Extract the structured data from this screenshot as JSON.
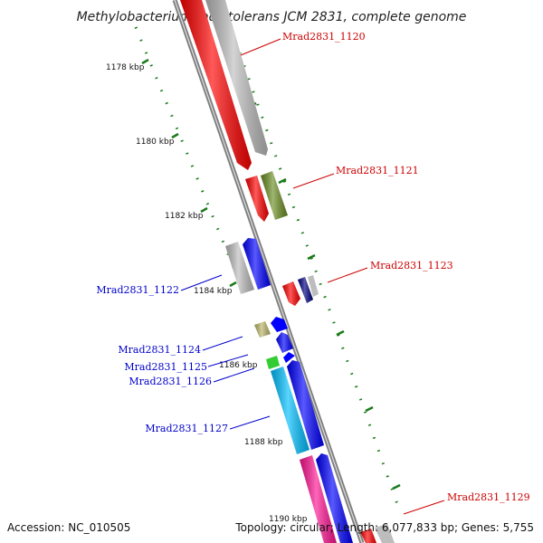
{
  "title": "Methylobacterium radiotolerans JCM 2831, complete genome",
  "footer": {
    "accession": "Accession: NC_010505",
    "topology": "Topology: circular; Length: 6,077,833 bp; Genes: 5,755"
  },
  "colors": {
    "backbone": "#808080",
    "tick": "#1a7a1a",
    "forward_label": "#cc0000",
    "reverse_label": "#0000cc"
  },
  "kbp_labels": [
    "1178 kbp",
    "1180 kbp",
    "1182 kbp",
    "1184 kbp",
    "1186 kbp",
    "1188 kbp",
    "1190 kbp"
  ],
  "gene_labels": [
    {
      "text": "Mrad2831_1120",
      "strand": "forward"
    },
    {
      "text": "Mrad2831_1121",
      "strand": "forward"
    },
    {
      "text": "Mrad2831_1123",
      "strand": "forward"
    },
    {
      "text": "Mrad2831_1129",
      "strand": "forward"
    },
    {
      "text": "Mrad2831_1122",
      "strand": "reverse"
    },
    {
      "text": "Mrad2831_1124",
      "strand": "reverse"
    },
    {
      "text": "Mrad2831_1125",
      "strand": "reverse"
    },
    {
      "text": "Mrad2831_1126",
      "strand": "reverse"
    },
    {
      "text": "Mrad2831_1127",
      "strand": "reverse"
    }
  ],
  "gene_colors": {
    "red": "#ff0000",
    "grey": "#bdbdbd",
    "olive": "#6b8e23",
    "blue": "#0000ff",
    "navy": "#000080",
    "khaki": "#bdb76b",
    "green": "#33cc33",
    "cyan": "#00bfff",
    "pink": "#ff1493"
  }
}
